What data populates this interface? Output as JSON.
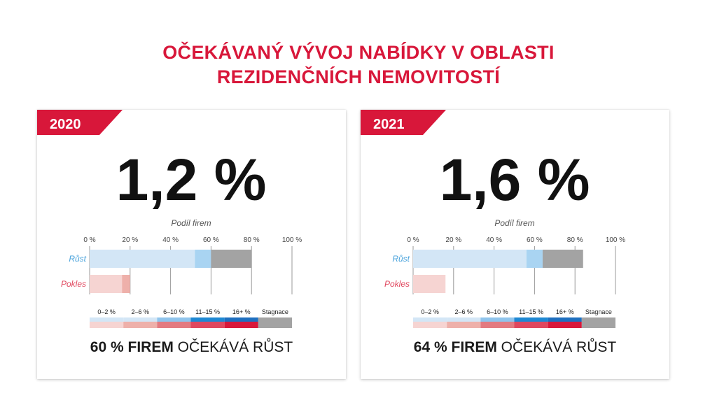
{
  "title_line1": "OČEKÁVANÝ VÝVOJ NABÍDKY V OBLASTI",
  "title_line2": "REZIDENČNÍCH NEMOVITOSTÍ",
  "colors": {
    "accent": "#d8173a",
    "growth_light": "#d3e6f6",
    "growth_mid": "#a9d4f2",
    "stagnation": "#a3a3a3",
    "decline_light": "#f6d4d2",
    "decline_mid": "#eeb0aa"
  },
  "chart_data": [
    {
      "type": "bar",
      "year": "2020",
      "big_value": "1,2 %",
      "axis_title": "Podíl firem",
      "x_ticks": [
        "0 %",
        "20 %",
        "40 %",
        "60 %",
        "80 %",
        "100 %"
      ],
      "xlim": [
        0,
        100
      ],
      "rows": [
        {
          "label": "Růst",
          "segments": [
            {
              "name": "0–2 %",
              "value": 52
            },
            {
              "name": "2–6 %",
              "value": 8
            },
            {
              "name": "Stagnace",
              "value": 20
            }
          ]
        },
        {
          "label": "Pokles",
          "segments": [
            {
              "name": "0–2 %",
              "value": 16
            },
            {
              "name": "2–6 %",
              "value": 4
            }
          ]
        }
      ],
      "legend": [
        "0–2 %",
        "2–6 %",
        "6–10 %",
        "11–15 %",
        "16+ %",
        "Stagnace"
      ],
      "footer_bold": "60 % FIREM",
      "footer_rest": " OČEKÁVÁ RŮST"
    },
    {
      "type": "bar",
      "year": "2021",
      "big_value": "1,6 %",
      "axis_title": "Podíl firem",
      "x_ticks": [
        "0 %",
        "20 %",
        "40 %",
        "60 %",
        "80 %",
        "100 %"
      ],
      "xlim": [
        0,
        100
      ],
      "rows": [
        {
          "label": "Růst",
          "segments": [
            {
              "name": "0–2 %",
              "value": 56
            },
            {
              "name": "2–6 %",
              "value": 8
            },
            {
              "name": "Stagnace",
              "value": 20
            }
          ]
        },
        {
          "label": "Pokles",
          "segments": [
            {
              "name": "0–2 %",
              "value": 16
            }
          ]
        }
      ],
      "legend": [
        "0–2 %",
        "2–6 %",
        "6–10 %",
        "11–15 %",
        "16+ %",
        "Stagnace"
      ],
      "footer_bold": "64 % FIREM",
      "footer_rest": " OČEKÁVÁ RŮST"
    }
  ]
}
